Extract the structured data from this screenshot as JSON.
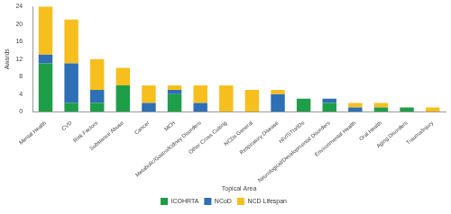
{
  "chart_data": {
    "type": "bar",
    "stacked": true,
    "x_label": "Topical Area",
    "y_label": "Awards",
    "categories": [
      "Mental Health",
      "CVD",
      "Risk Factors",
      "Substance Abuse",
      "Cancer",
      "MCH",
      "Metabolic/Gastro/Kidney Disorders",
      "Other Cross Cutting",
      "NCDs General",
      "Respiratory Disease",
      "HIV/STIs/IDs",
      "Neurological/Developmental Disorders",
      "Environmental Health",
      "Oral Health",
      "Aging Disorders",
      "Trauma/Injury"
    ],
    "series": [
      {
        "name": "ICOHRTA",
        "color": "#1e9e48",
        "values": [
          11,
          2,
          2,
          6,
          0,
          4,
          0,
          0,
          0,
          0,
          3,
          2,
          0,
          1,
          1,
          0
        ]
      },
      {
        "name": "NCoD",
        "color": "#2e6fb5",
        "values": [
          2,
          9,
          3,
          0,
          2,
          1,
          2,
          0,
          0,
          4,
          0,
          1,
          1,
          0,
          0,
          0
        ]
      },
      {
        "name": "NCD Lifespan",
        "color": "#f7bf1e",
        "values": [
          11,
          10,
          7,
          4,
          4,
          1,
          4,
          6,
          5,
          1,
          0,
          0,
          1,
          1,
          0,
          1
        ]
      }
    ],
    "ylim": [
      0,
      24
    ],
    "yticks": [
      0,
      4,
      8,
      12,
      16,
      20,
      24
    ],
    "grid": false,
    "legend": "bottom"
  }
}
